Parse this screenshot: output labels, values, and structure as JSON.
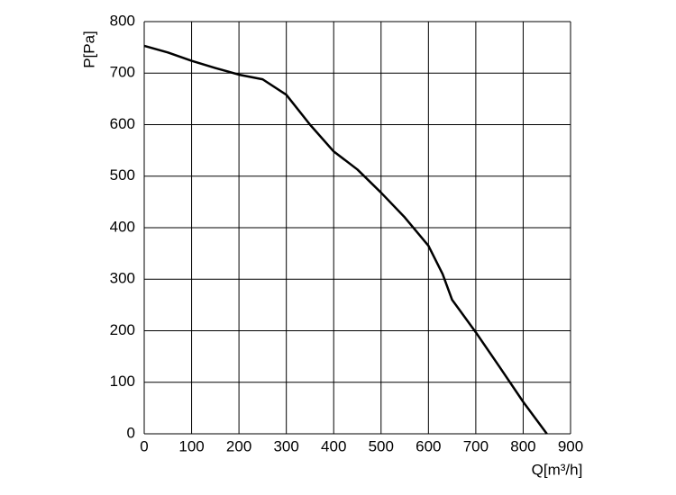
{
  "chart_data": {
    "type": "line",
    "x_label": "Q[m³/h]",
    "y_label": "P[Pa]",
    "x": [
      0,
      50,
      100,
      150,
      200,
      250,
      300,
      350,
      400,
      450,
      500,
      550,
      600,
      630,
      650,
      700,
      750,
      800,
      850
    ],
    "series": [
      {
        "color": "#000000",
        "values": [
          753,
          740,
          724,
          710,
          697,
          688,
          658,
          600,
          548,
          513,
          468,
          420,
          365,
          310,
          260,
          197,
          130,
          62,
          0
        ]
      }
    ],
    "xlim": [
      0,
      900
    ],
    "xticks": [
      0,
      100,
      200,
      300,
      400,
      500,
      600,
      700,
      800,
      900
    ],
    "ylim": [
      0,
      800
    ],
    "yticks": [
      0,
      100,
      200,
      300,
      400,
      500,
      600,
      700,
      800
    ],
    "grid": true
  }
}
